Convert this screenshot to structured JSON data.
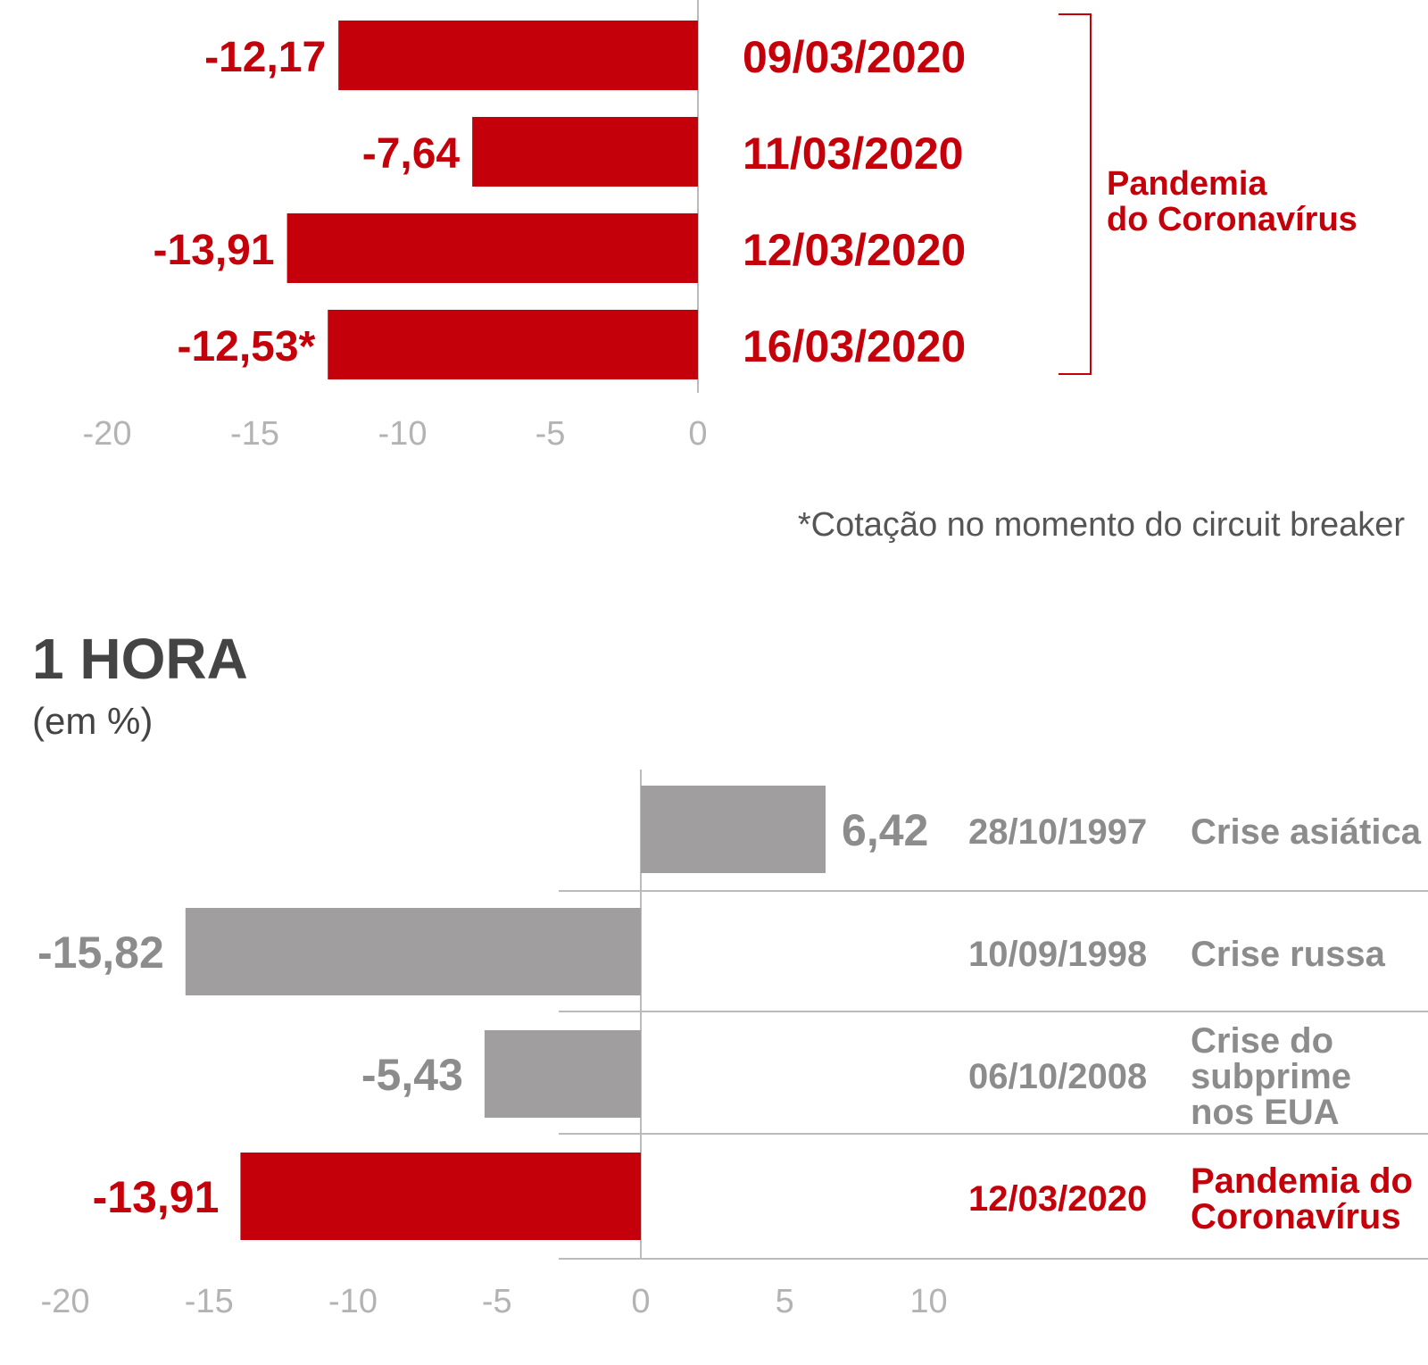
{
  "colors": {
    "highlight": "#c4000b",
    "neutral": "#a09e9f",
    "neutral_text": "#8c8c8c",
    "axis": "#bbbbbb",
    "tick_text": "#b3b3b3"
  },
  "chart_data": [
    {
      "type": "bar",
      "orientation": "horizontal",
      "categories": [
        "09/03/2020",
        "11/03/2020",
        "12/03/2020",
        "16/03/2020"
      ],
      "values": [
        -12.17,
        -7.64,
        -13.91,
        -12.53
      ],
      "value_labels": [
        "-12,17",
        "-7,64",
        "-13,91",
        "-12,53*"
      ],
      "bar_colors": [
        "#c4000b",
        "#c4000b",
        "#c4000b",
        "#c4000b"
      ],
      "group_label": [
        "Pandemia",
        "do Coronavírus"
      ],
      "xlim": [
        -20,
        0
      ],
      "xticks": [
        -20,
        -15,
        -10,
        -5,
        0
      ],
      "xtick_labels": [
        "-20",
        "-15",
        "-10",
        "-5",
        "0"
      ],
      "footnote": "*Cotação no momento do circuit breaker"
    },
    {
      "type": "bar",
      "orientation": "horizontal",
      "title": "1 HORA",
      "subtitle": "(em %)",
      "categories": [
        "28/10/1997",
        "10/09/1998",
        "06/10/2008",
        "12/03/2020"
      ],
      "descriptions": [
        [
          "Crise asiática"
        ],
        [
          "Crise russa"
        ],
        [
          "Crise do",
          "subprime",
          "nos EUA"
        ],
        [
          "Pandemia do",
          "Coronavírus"
        ]
      ],
      "values": [
        6.42,
        -15.82,
        -5.43,
        -13.91
      ],
      "value_labels": [
        "6,42",
        "-15,82",
        "-5,43",
        "-13,91"
      ],
      "bar_colors": [
        "#a09e9f",
        "#a09e9f",
        "#a09e9f",
        "#c4000b"
      ],
      "xlim": [
        -20,
        10
      ],
      "xticks": [
        -20,
        -15,
        -10,
        -5,
        0,
        5,
        10
      ],
      "xtick_labels": [
        "-20",
        "-15",
        "-10",
        "-5",
        "0",
        "5",
        "10"
      ]
    }
  ]
}
